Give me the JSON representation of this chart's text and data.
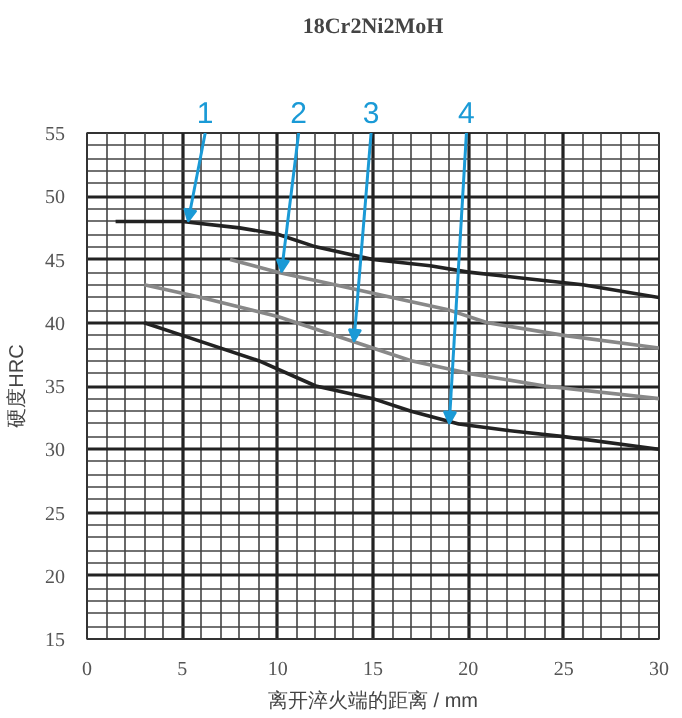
{
  "chart_data": {
    "type": "line",
    "title": "18Cr2Ni2MoH",
    "xlabel": "离开淬火端的距离 / mm",
    "ylabel": "硬度HRC",
    "xlim": [
      0,
      30
    ],
    "ylim": [
      15,
      55
    ],
    "xticks": [
      0,
      5,
      10,
      15,
      20,
      25,
      30
    ],
    "yticks": [
      15,
      20,
      25,
      30,
      35,
      40,
      45,
      50,
      55
    ],
    "grid": true,
    "line_style": "solid",
    "marker": "none",
    "series": [
      {
        "color": "#222222",
        "x": [
          1.5,
          5,
          8,
          10,
          12,
          15,
          18,
          20,
          23,
          26,
          30
        ],
        "values": [
          48,
          48,
          47.5,
          47,
          46,
          45,
          44.5,
          44,
          43.5,
          43,
          42
        ]
      },
      {
        "color": "#888888",
        "x": [
          7.5,
          10,
          13,
          16,
          19,
          21,
          25,
          30
        ],
        "values": [
          45,
          44,
          43,
          42,
          41,
          40,
          39,
          38
        ]
      },
      {
        "color": "#888888",
        "x": [
          3,
          6,
          10,
          14,
          17,
          20,
          24,
          30
        ],
        "values": [
          43,
          42,
          40.5,
          38.5,
          37,
          36,
          35,
          34
        ]
      },
      {
        "color": "#222222",
        "x": [
          3,
          5,
          9,
          12,
          15,
          17,
          19.5,
          22,
          25,
          30
        ],
        "values": [
          40,
          39,
          37,
          35,
          34,
          33,
          32,
          31.5,
          31,
          30
        ]
      }
    ],
    "annotations": [
      {
        "text": "1",
        "x": 5.3,
        "y": 48
      },
      {
        "text": "2",
        "x": 10.2,
        "y": 44
      },
      {
        "text": "3",
        "x": 14,
        "y": 38.5
      },
      {
        "text": "4",
        "x": 19,
        "y": 32
      }
    ]
  }
}
